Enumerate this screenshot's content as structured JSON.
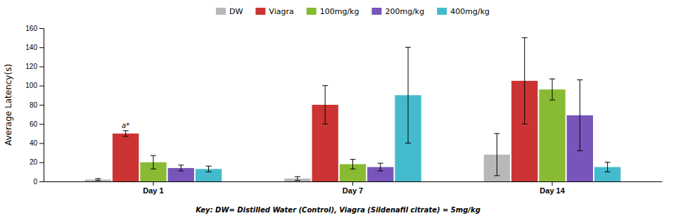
{
  "chart_data": {
    "type": "bar",
    "categories": [
      "Day 1",
      "Day 7",
      "Day 14"
    ],
    "series": [
      {
        "name": "DW",
        "color": "#b8b8b8",
        "values": [
          2.0,
          3.0,
          28.0
        ],
        "errors": [
          1.0,
          2.0,
          22.0
        ]
      },
      {
        "name": "Viagra",
        "color": "#cc3333",
        "values": [
          50.0,
          80.0,
          105.0
        ],
        "errors": [
          3.0,
          20.0,
          45.0
        ]
      },
      {
        "name": "100mg/kg",
        "color": "#88bb33",
        "values": [
          20.0,
          18.0,
          96.0
        ],
        "errors": [
          7.0,
          5.0,
          11.0
        ]
      },
      {
        "name": "200mg/kg",
        "color": "#7755bb",
        "values": [
          14.0,
          15.0,
          69.0
        ],
        "errors": [
          3.0,
          4.0,
          37.0
        ]
      },
      {
        "name": "400mg/kg",
        "color": "#44bbcc",
        "values": [
          13.0,
          90.0,
          15.0
        ],
        "errors": [
          3.0,
          50.0,
          5.0
        ]
      }
    ],
    "ylabel": "Average Latency(s)",
    "ylim": [
      0,
      160
    ],
    "yticks": [
      0,
      20,
      40,
      60,
      80,
      100,
      120,
      140,
      160
    ],
    "annotations": [
      {
        "text": "a*",
        "category": 0,
        "series": 1
      }
    ],
    "caption": "Key: DW= Distilled Water (Control), Viagra (Sildenafil citrate) = 5mg/kg",
    "legend": "top",
    "grid": false
  }
}
